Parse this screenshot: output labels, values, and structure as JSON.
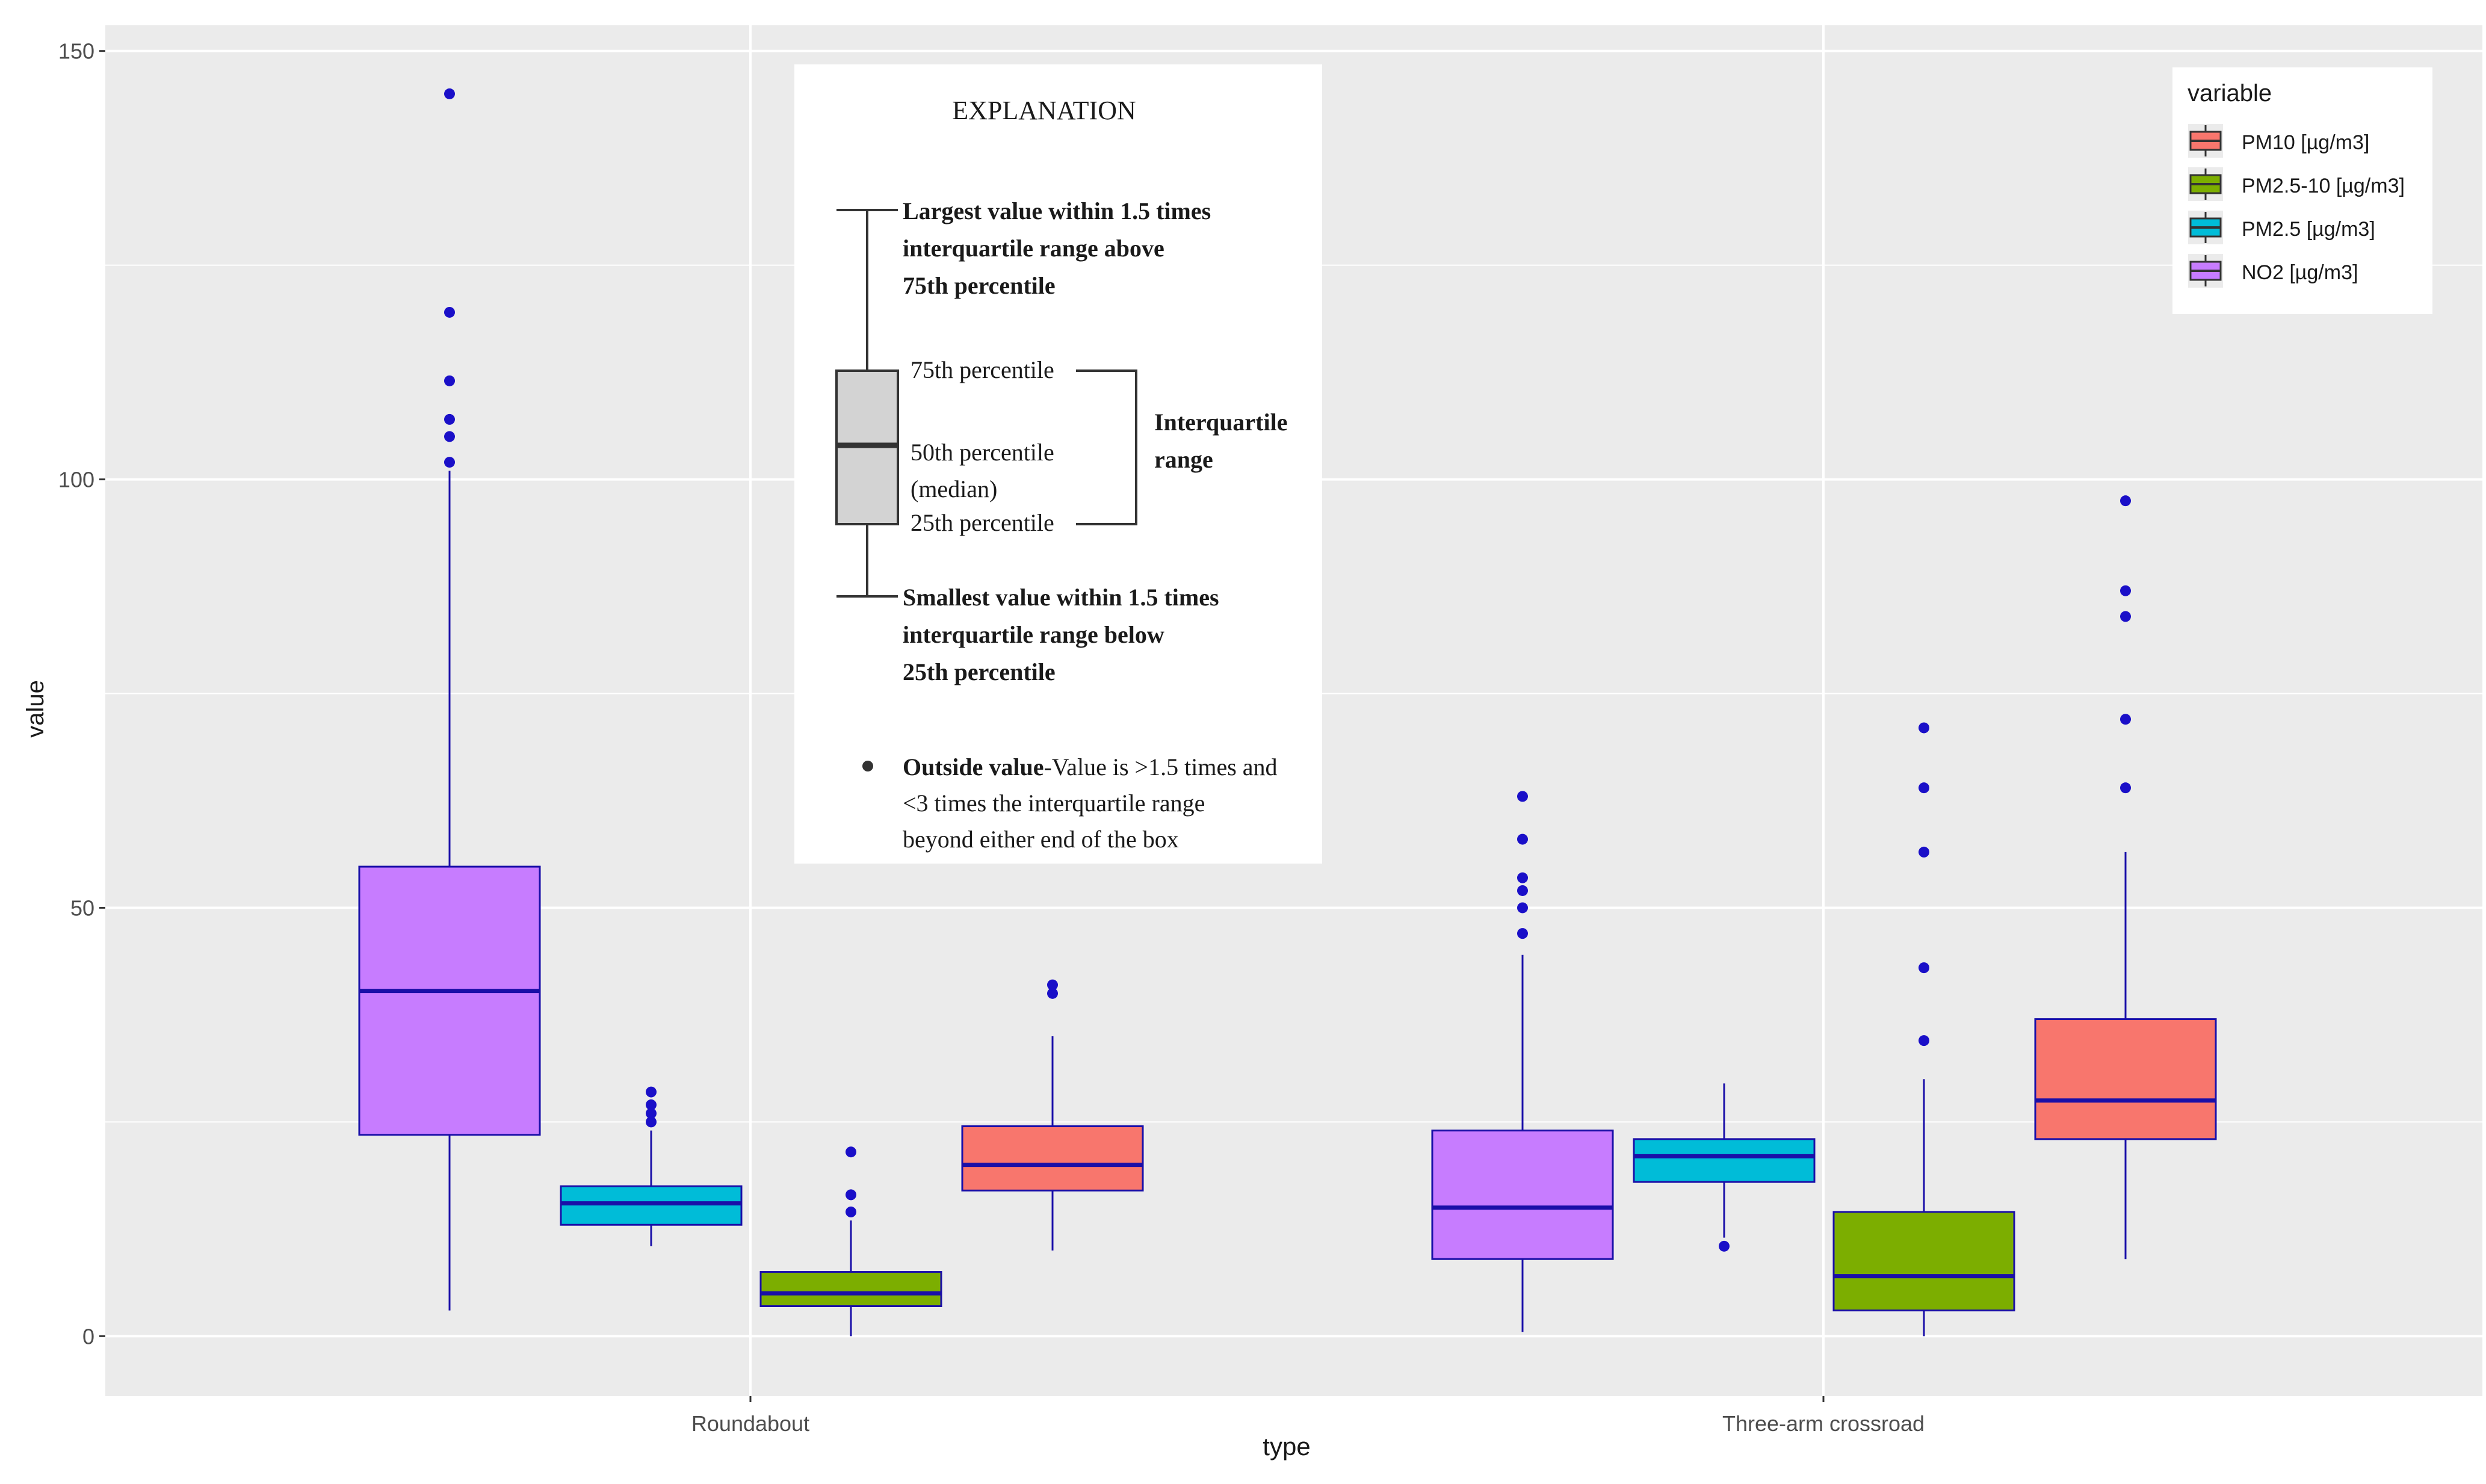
{
  "chart_data": {
    "type": "box",
    "xlabel": "type",
    "ylabel": "value",
    "ylim": [
      -7,
      153
    ],
    "yticks": [
      0,
      50,
      100,
      150
    ],
    "ytick_labels": [
      "0",
      "50",
      "100",
      "150"
    ],
    "grid": true,
    "legend_position": "top-right",
    "categories": [
      "Roundabout",
      "Three-arm crossroad"
    ],
    "legend": {
      "title": "variable",
      "entries": [
        {
          "name": "PM10 [µg/m3]",
          "color": "#f8766d"
        },
        {
          "name": "PM2.5-10 [µg/m3]",
          "color": "#7cae00"
        },
        {
          "name": "PM2.5 [µg/m3]",
          "color": "#00bcd8"
        },
        {
          "name": "NO2 [µg/m3]",
          "color": "#c77cff"
        }
      ]
    },
    "series": [
      {
        "name": "NO2 [µg/m3]",
        "color": "#c77cff",
        "boxes": [
          {
            "category": "Roundabout",
            "whisker_low": 3,
            "q1": 23.5,
            "median": 40.3,
            "q3": 54.8,
            "whisker_high": 101,
            "outliers": [
              102,
              105,
              107,
              111.5,
              119.5,
              145
            ]
          },
          {
            "category": "Three-arm crossroad",
            "whisker_low": 0.5,
            "q1": 9,
            "median": 15,
            "q3": 24,
            "whisker_high": 44.5,
            "outliers": [
              47,
              50,
              52,
              53.5,
              58,
              63
            ]
          }
        ]
      },
      {
        "name": "PM2.5 [µg/m3]",
        "color": "#00bcd8",
        "boxes": [
          {
            "category": "Roundabout",
            "whisker_low": 10.5,
            "q1": 13,
            "median": 15.5,
            "q3": 17.5,
            "whisker_high": 24,
            "outliers": [
              25,
              26,
              27,
              28.5
            ]
          },
          {
            "category": "Three-arm crossroad",
            "whisker_low": 11.5,
            "q1": 18,
            "median": 21,
            "q3": 23,
            "whisker_high": 29.5,
            "outliers": [
              10.5
            ]
          }
        ]
      },
      {
        "name": "PM2.5-10 [µg/m3]",
        "color": "#7cae00",
        "boxes": [
          {
            "category": "Roundabout",
            "whisker_low": 0,
            "q1": 3.5,
            "median": 5,
            "q3": 7.5,
            "whisker_high": 13.5,
            "outliers": [
              14.5,
              16.5,
              21.5
            ]
          },
          {
            "category": "Three-arm crossroad",
            "whisker_low": 0,
            "q1": 3,
            "median": 7,
            "q3": 14.5,
            "whisker_high": 30,
            "outliers": [
              34.5,
              43,
              56.5,
              64,
              71
            ]
          }
        ]
      },
      {
        "name": "PM10 [µg/m3]",
        "color": "#f8766d",
        "boxes": [
          {
            "category": "Roundabout",
            "whisker_low": 10,
            "q1": 17,
            "median": 20,
            "q3": 24.5,
            "whisker_high": 35,
            "outliers": [
              40,
              41
            ]
          },
          {
            "category": "Three-arm crossroad",
            "whisker_low": 9,
            "q1": 23,
            "median": 27.5,
            "q3": 37,
            "whisker_high": 56.5,
            "outliers": [
              64,
              72,
              84,
              87,
              97.5
            ]
          }
        ]
      }
    ],
    "explanation": {
      "title": "EXPLANATION",
      "largest": [
        "Largest value within 1.5 times",
        "interquartile range above",
        "75th percentile"
      ],
      "p75": "75th percentile",
      "p50": "50th percentile",
      "median": "(median)",
      "p25": "25th percentile",
      "iqr": [
        "Interquartile",
        "range"
      ],
      "smallest": [
        "Smallest value within 1.5 times",
        "interquartile range below",
        "25th percentile"
      ],
      "outside_bold": "Outside value",
      "outside_text": [
        "-Value is >1.5 times and",
        "<3 times the interquartile range",
        "beyond either end of the box"
      ]
    }
  }
}
